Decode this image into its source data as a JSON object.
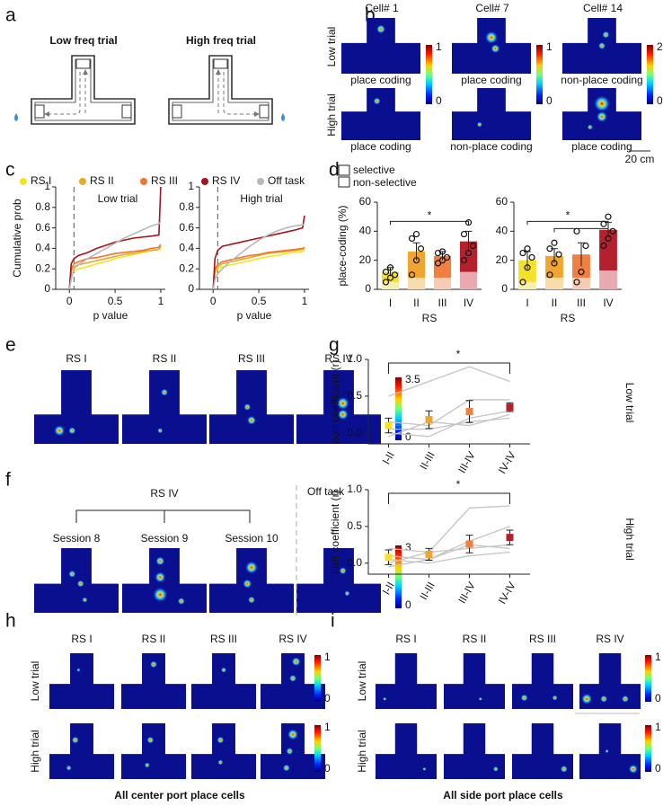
{
  "panel_labels": [
    "a",
    "b",
    "c",
    "d",
    "e",
    "f",
    "g",
    "h",
    "i"
  ],
  "a": {
    "titles": [
      "Low freq trial",
      "High freq trial"
    ]
  },
  "b": {
    "cells": [
      "Cell# 1",
      "Cell# 7",
      "Cell# 14"
    ],
    "rows": [
      "Low trial",
      "High trial"
    ],
    "captions": [
      [
        "place coding",
        "place coding",
        "non-place coding"
      ],
      [
        "place coding",
        "non-place coding",
        "place coding"
      ]
    ],
    "colorbars": [
      {
        "max": 1,
        "min": 0
      },
      {
        "max": 1,
        "min": 0
      },
      {
        "max": 2,
        "min": 0
      }
    ],
    "scale_bar": "20 cm"
  },
  "e": {
    "titles": [
      "RS I",
      "RS II",
      "RS III",
      "RS IV"
    ],
    "colorbar": {
      "max": 3.5,
      "min": 0
    }
  },
  "f": {
    "group": "RS IV",
    "sessions": [
      "Session 8",
      "Session 9",
      "Session 10"
    ],
    "off_task": "Off task",
    "colorbar": {
      "max": 3,
      "min": 0
    }
  },
  "h": {
    "titles": [
      "RS I",
      "RS II",
      "RS III",
      "RS IV"
    ],
    "rows": [
      "Low trial",
      "High trial"
    ],
    "colorbars": [
      {
        "max": 1,
        "min": 0
      },
      {
        "max": 1,
        "min": 0
      }
    ],
    "caption": "All center port place cells"
  },
  "i": {
    "titles": [
      "RS I",
      "RS II",
      "RS III",
      "RS IV"
    ],
    "rows": [
      "Low trial",
      "High trial"
    ],
    "colorbars": [
      {
        "max": 1,
        "min": 0
      },
      {
        "max": 1,
        "min": 0
      }
    ],
    "caption": "All side port place cells"
  },
  "chart_data": [
    {
      "type": "line",
      "title": "Low trial",
      "xlabel": "p value",
      "ylabel": "Cumulative prob",
      "xlim": [
        -0.15,
        1.05
      ],
      "ylim": [
        0,
        1
      ],
      "xticks": [
        0,
        0.5,
        1
      ],
      "yticks": [
        0,
        0.2,
        0.4,
        0.6,
        0.8,
        1
      ],
      "vline": 0.05,
      "x": [
        0,
        0.02,
        0.05,
        0.1,
        0.2,
        0.3,
        0.4,
        0.5,
        0.6,
        0.7,
        0.8,
        0.9,
        0.98,
        1
      ],
      "series": [
        {
          "name": "RS I",
          "color": "#f3e620",
          "values": [
            0,
            0.15,
            0.18,
            0.2,
            0.22,
            0.25,
            0.27,
            0.3,
            0.32,
            0.34,
            0.36,
            0.38,
            0.39,
            0.4
          ]
        },
        {
          "name": "RS II",
          "color": "#e7a92b",
          "values": [
            0,
            0.18,
            0.22,
            0.24,
            0.26,
            0.28,
            0.3,
            0.32,
            0.34,
            0.35,
            0.37,
            0.38,
            0.39,
            0.42
          ]
        },
        {
          "name": "RS III",
          "color": "#f2742d",
          "values": [
            0,
            0.2,
            0.25,
            0.27,
            0.3,
            0.31,
            0.33,
            0.35,
            0.36,
            0.37,
            0.38,
            0.4,
            0.41,
            0.44
          ]
        },
        {
          "name": "RS IV",
          "color": "#a3141f",
          "values": [
            0,
            0.25,
            0.3,
            0.33,
            0.36,
            0.4,
            0.43,
            0.46,
            0.48,
            0.5,
            0.51,
            0.52,
            0.53,
            1
          ]
        },
        {
          "name": "Off task",
          "color": "#b8b8b8",
          "values": [
            0,
            0.1,
            0.2,
            0.24,
            0.3,
            0.35,
            0.4,
            0.45,
            0.5,
            0.54,
            0.58,
            0.62,
            0.64,
            0.66
          ]
        }
      ]
    },
    {
      "type": "line",
      "title": "High trial",
      "xlabel": "p value",
      "xlim": [
        -0.15,
        1.05
      ],
      "ylim": [
        0,
        1
      ],
      "xticks": [
        0,
        0.5,
        1
      ],
      "yticks": [
        0,
        0.2,
        0.4,
        0.6,
        0.8,
        1
      ],
      "vline": 0.05,
      "x": [
        0,
        0.02,
        0.05,
        0.1,
        0.2,
        0.3,
        0.4,
        0.5,
        0.6,
        0.7,
        0.8,
        0.9,
        0.98,
        1
      ],
      "series": [
        {
          "color": "#f3e620",
          "values": [
            0,
            0.15,
            0.2,
            0.22,
            0.24,
            0.26,
            0.28,
            0.3,
            0.32,
            0.33,
            0.35,
            0.36,
            0.37,
            0.38
          ]
        },
        {
          "color": "#e7a92b",
          "values": [
            0,
            0.18,
            0.22,
            0.25,
            0.27,
            0.29,
            0.31,
            0.33,
            0.35,
            0.36,
            0.37,
            0.38,
            0.39,
            0.4
          ]
        },
        {
          "color": "#f2742d",
          "values": [
            0,
            0.2,
            0.24,
            0.27,
            0.29,
            0.31,
            0.33,
            0.34,
            0.36,
            0.37,
            0.38,
            0.39,
            0.4,
            0.41
          ]
        },
        {
          "color": "#a3141f",
          "values": [
            0,
            0.3,
            0.38,
            0.42,
            0.44,
            0.46,
            0.48,
            0.5,
            0.52,
            0.54,
            0.56,
            0.58,
            0.6,
            0.72
          ]
        },
        {
          "color": "#b8b8b8",
          "values": [
            0,
            0.1,
            0.15,
            0.2,
            0.28,
            0.35,
            0.42,
            0.48,
            0.53,
            0.57,
            0.6,
            0.62,
            0.63,
            0.64
          ]
        }
      ]
    },
    {
      "type": "bar",
      "categories": [
        "I",
        "II",
        "III",
        "IV"
      ],
      "xlabel": "RS",
      "ylabel": "place-coding (%)",
      "ylim": [
        0,
        60
      ],
      "yticks": [
        0,
        20,
        40,
        60
      ],
      "series": [
        {
          "name": "non-selective",
          "colors": [
            "#f8f0a8",
            "#f8dcaa",
            "#f8cbb4",
            "#e8a9b0"
          ],
          "values": [
            5,
            8,
            8,
            12
          ]
        },
        {
          "name": "selective",
          "colors": [
            "#f5e12b",
            "#efa530",
            "#f07f42",
            "#b5202e"
          ],
          "values": [
            7,
            18,
            15,
            21
          ]
        }
      ],
      "errors": [
        3,
        6,
        3,
        7
      ],
      "points": [
        [
          5,
          8,
          10,
          12,
          15
        ],
        [
          10,
          20,
          28,
          35,
          38
        ],
        [
          18,
          20,
          22,
          25,
          26
        ],
        [
          20,
          25,
          30,
          38,
          46
        ]
      ],
      "significance": [
        {
          "from": 0,
          "to": 3,
          "label": "*"
        }
      ]
    },
    {
      "type": "bar",
      "categories": [
        "I",
        "II",
        "III",
        "IV"
      ],
      "xlabel": "RS",
      "ylim": [
        0,
        60
      ],
      "yticks": [
        0,
        20,
        40,
        60
      ],
      "series": [
        {
          "colors": [
            "#f8f0a8",
            "#f8dcaa",
            "#f8cbb4",
            "#e8a9b0"
          ],
          "values": [
            5,
            8,
            8,
            13
          ]
        },
        {
          "colors": [
            "#f5e12b",
            "#efa530",
            "#f07f42",
            "#b5202e"
          ],
          "values": [
            15,
            15,
            16,
            28
          ]
        }
      ],
      "errors": [
        6,
        5,
        8,
        5
      ],
      "points": [
        [
          5,
          15,
          22,
          25,
          28
        ],
        [
          10,
          18,
          24,
          28,
          32
        ],
        [
          5,
          12,
          30,
          40
        ],
        [
          30,
          35,
          40,
          45,
          50
        ]
      ],
      "significance": [
        {
          "from": 0,
          "to": 3,
          "label": "*"
        },
        {
          "from": 1,
          "to": 3
        }
      ]
    },
    {
      "type": "errorbar",
      "categories": [
        "I-II",
        "II-III",
        "III-IV",
        "IV-IV"
      ],
      "ylabel": "corr coefficient (r)",
      "side_label": "Low trial",
      "ylim": [
        -0.15,
        1
      ],
      "yticks": [
        {
          "value": 0,
          "label": "0.0"
        },
        {
          "value": 0.5,
          "label": "0.5"
        },
        {
          "value": 1,
          "label": "1.0"
        }
      ],
      "values": [
        0.1,
        0.18,
        0.29,
        0.35
      ],
      "errors": [
        0.1,
        0.12,
        0.15,
        0.06
      ],
      "colors": [
        "#f5e12b",
        "#efa530",
        "#f07f42",
        "#b5202e"
      ],
      "individual_color": "#c4c4c4",
      "individual": [
        [
          0.5,
          0.7,
          0.9,
          0.7
        ],
        [
          0.15,
          0.1,
          0.45,
          0.45
        ],
        [
          0,
          -0.05,
          0.2,
          0.3
        ],
        [
          -0.05,
          0.15,
          0.1,
          0.25
        ],
        [
          0.05,
          0.05,
          0.15,
          0.2
        ]
      ],
      "significance": [
        {
          "from": 0,
          "to": 3,
          "label": "*"
        }
      ]
    },
    {
      "type": "errorbar",
      "categories": [
        "I-II",
        "II-III",
        "III-IV",
        "IV-IV"
      ],
      "ylabel": "corr coefficient (r)",
      "side_label": "High trial",
      "ylim": [
        -0.15,
        1
      ],
      "yticks": [
        {
          "value": 0,
          "label": "0.0"
        },
        {
          "value": 0.5,
          "label": "0.5"
        },
        {
          "value": 1,
          "label": "1.0"
        }
      ],
      "values": [
        0.08,
        0.12,
        0.26,
        0.35
      ],
      "errors": [
        0.1,
        0.08,
        0.12,
        0.1
      ],
      "colors": [
        "#f5e12b",
        "#efa530",
        "#f07f42",
        "#b5202e"
      ],
      "individual_color": "#c4c4c4",
      "individual": [
        [
          0.2,
          0.15,
          0.75,
          0.78
        ],
        [
          0.1,
          0.05,
          0.3,
          0.5
        ],
        [
          0,
          0.15,
          0.2,
          0.25
        ],
        [
          -0.05,
          0.05,
          0.25,
          0.2
        ],
        [
          0.05,
          0,
          0.1,
          0.15
        ]
      ],
      "significance": [
        {
          "from": 0,
          "to": 3,
          "label": "*"
        }
      ]
    }
  ]
}
